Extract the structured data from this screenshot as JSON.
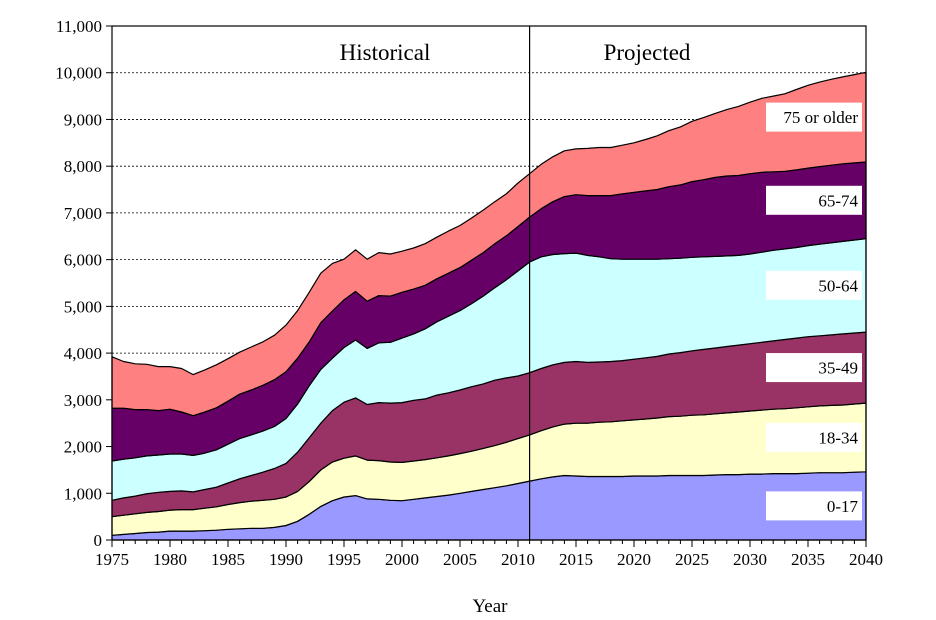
{
  "chart_data": {
    "type": "area",
    "stacked": true,
    "xlabel": "Year",
    "ylabel": "",
    "xlim": [
      1975,
      2040
    ],
    "ylim": [
      0,
      11000
    ],
    "x_ticks": [
      "1975",
      "1980",
      "1985",
      "1990",
      "1995",
      "2000",
      "2005",
      "2010",
      "2015",
      "2020",
      "2025",
      "2030",
      "2035",
      "2040"
    ],
    "y_ticks": [
      "0",
      "1,000",
      "2,000",
      "3,000",
      "4,000",
      "5,000",
      "6,000",
      "7,000",
      "8,000",
      "9,000",
      "10,000",
      "11,000"
    ],
    "gridlines": "horizontal dashed",
    "annotations": {
      "divider_year": 2011,
      "historical_label": "Historical",
      "projected_label": "Projected"
    },
    "x": [
      1975,
      1976,
      1977,
      1978,
      1979,
      1980,
      1981,
      1982,
      1983,
      1984,
      1985,
      1986,
      1987,
      1988,
      1989,
      1990,
      1991,
      1992,
      1993,
      1994,
      1995,
      1996,
      1997,
      1998,
      1999,
      2000,
      2001,
      2002,
      2003,
      2004,
      2005,
      2006,
      2007,
      2008,
      2009,
      2010,
      2011,
      2012,
      2013,
      2014,
      2015,
      2016,
      2017,
      2018,
      2019,
      2020,
      2021,
      2022,
      2023,
      2024,
      2025,
      2026,
      2027,
      2028,
      2029,
      2030,
      2031,
      2032,
      2033,
      2034,
      2035,
      2036,
      2037,
      2038,
      2039,
      2040
    ],
    "series": [
      {
        "name": "0-17",
        "color": "#9999ff",
        "values": [
          100,
          120,
          140,
          160,
          170,
          190,
          190,
          190,
          200,
          210,
          230,
          240,
          250,
          250,
          270,
          310,
          400,
          550,
          720,
          840,
          920,
          950,
          880,
          870,
          850,
          840,
          870,
          900,
          930,
          960,
          1000,
          1040,
          1080,
          1120,
          1160,
          1210,
          1260,
          1310,
          1350,
          1380,
          1370,
          1360,
          1360,
          1360,
          1360,
          1370,
          1370,
          1370,
          1380,
          1380,
          1380,
          1380,
          1390,
          1400,
          1400,
          1410,
          1410,
          1420,
          1420,
          1420,
          1430,
          1440,
          1440,
          1440,
          1450,
          1460
        ]
      },
      {
        "name": "18-34",
        "color": "#ffffcc",
        "values": [
          400,
          410,
          420,
          430,
          440,
          450,
          460,
          460,
          480,
          500,
          530,
          560,
          580,
          600,
          600,
          610,
          640,
          700,
          780,
          830,
          830,
          850,
          830,
          830,
          820,
          820,
          820,
          820,
          830,
          840,
          850,
          860,
          880,
          900,
          930,
          960,
          990,
          1030,
          1070,
          1100,
          1130,
          1140,
          1160,
          1170,
          1190,
          1200,
          1220,
          1240,
          1260,
          1270,
          1290,
          1300,
          1310,
          1320,
          1340,
          1350,
          1370,
          1380,
          1390,
          1410,
          1420,
          1430,
          1440,
          1450,
          1460,
          1470
        ]
      },
      {
        "name": "35-49",
        "color": "#993366",
        "values": [
          350,
          370,
          380,
          400,
          410,
          400,
          400,
          380,
          400,
          420,
          460,
          510,
          550,
          600,
          660,
          720,
          840,
          940,
          1000,
          1100,
          1200,
          1240,
          1190,
          1240,
          1260,
          1280,
          1300,
          1300,
          1340,
          1350,
          1360,
          1380,
          1380,
          1400,
          1380,
          1340,
          1330,
          1330,
          1330,
          1320,
          1320,
          1300,
          1290,
          1290,
          1290,
          1300,
          1310,
          1320,
          1340,
          1360,
          1380,
          1400,
          1410,
          1420,
          1430,
          1440,
          1450,
          1460,
          1480,
          1490,
          1500,
          1500,
          1510,
          1520,
          1520,
          1520
        ]
      },
      {
        "name": "50-64",
        "color": "#ccffff",
        "values": [
          840,
          830,
          820,
          810,
          800,
          800,
          790,
          780,
          780,
          800,
          830,
          860,
          870,
          880,
          900,
          960,
          1030,
          1110,
          1150,
          1120,
          1170,
          1240,
          1200,
          1280,
          1300,
          1380,
          1420,
          1500,
          1570,
          1640,
          1700,
          1780,
          1880,
          1980,
          2100,
          2250,
          2370,
          2390,
          2360,
          2330,
          2320,
          2290,
          2250,
          2200,
          2170,
          2140,
          2110,
          2080,
          2040,
          2020,
          2000,
          1980,
          1960,
          1940,
          1920,
          1920,
          1930,
          1940,
          1940,
          1940,
          1950,
          1960,
          1970,
          1980,
          1990,
          2000
        ]
      },
      {
        "name": "65-74",
        "color": "#660066",
        "values": [
          1130,
          1090,
          1030,
          990,
          950,
          960,
          900,
          850,
          880,
          900,
          920,
          950,
          960,
          980,
          1000,
          1000,
          980,
          940,
          1000,
          1010,
          1020,
          1040,
          1010,
          1010,
          990,
          980,
          960,
          930,
          920,
          920,
          920,
          930,
          930,
          940,
          940,
          950,
          960,
          1030,
          1130,
          1220,
          1250,
          1280,
          1310,
          1350,
          1400,
          1430,
          1460,
          1490,
          1540,
          1570,
          1620,
          1650,
          1690,
          1710,
          1710,
          1720,
          1710,
          1680,
          1660,
          1660,
          1660,
          1660,
          1660,
          1660,
          1650,
          1640
        ]
      },
      {
        "name": "75 or older",
        "color": "#ff8080",
        "values": [
          1100,
          1000,
          980,
          970,
          940,
          910,
          930,
          880,
          900,
          920,
          910,
          900,
          920,
          930,
          950,
          1000,
          1020,
          1060,
          1060,
          1020,
          870,
          890,
          900,
          920,
          900,
          880,
          880,
          890,
          890,
          900,
          900,
          900,
          910,
          900,
          900,
          930,
          930,
          950,
          960,
          980,
          980,
          1010,
          1030,
          1030,
          1040,
          1060,
          1100,
          1150,
          1200,
          1240,
          1290,
          1330,
          1370,
          1420,
          1480,
          1530,
          1580,
          1620,
          1660,
          1720,
          1770,
          1810,
          1840,
          1860,
          1890,
          1920
        ]
      }
    ]
  }
}
